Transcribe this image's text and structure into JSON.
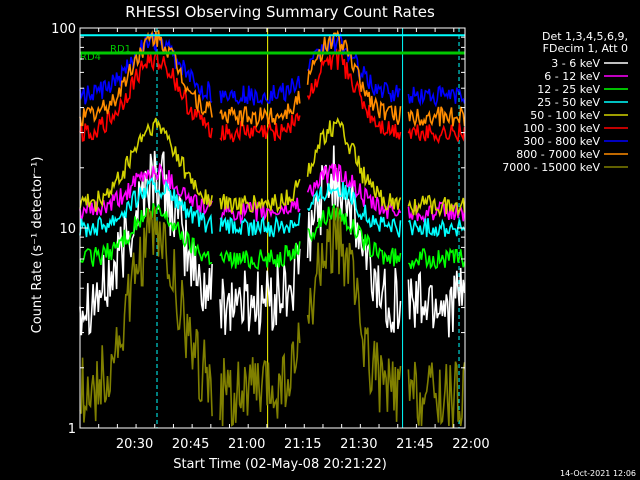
{
  "chart_data": {
    "type": "line",
    "title": "RHESSI Observing Summary Count Rates",
    "xlabel": "Start Time (02-May-08 20:21:22)",
    "ylabel": "Count Rate (s⁻¹ detector⁻¹)",
    "yscale": "log",
    "ylim": [
      1,
      100
    ],
    "xlim_minutes": [
      -6,
      97
    ],
    "x_ticks": [
      {
        "t": 8.6,
        "label": "20:30"
      },
      {
        "t": 23.6,
        "label": "20:45"
      },
      {
        "t": 38.6,
        "label": "21:00"
      },
      {
        "t": 53.6,
        "label": "21:15"
      },
      {
        "t": 68.6,
        "label": "21:30"
      },
      {
        "t": 83.6,
        "label": "21:45"
      },
      {
        "t": 98.6,
        "label": "22:00"
      }
    ],
    "y_ticks": [
      {
        "v": 1,
        "label": "1"
      },
      {
        "v": 10,
        "label": "10"
      },
      {
        "v": 100,
        "label": "100"
      }
    ],
    "grid": false,
    "legend_position": "right",
    "legend_header": [
      "Det 1,3,4,5,6,9,",
      "FDecim 1, Att 0"
    ],
    "flags": [
      {
        "label": "RD1",
        "color": "#00c800"
      },
      {
        "label": "RD4",
        "color": "#00c800"
      }
    ],
    "timestamp": "14-Oct-2021 12:06",
    "series": [
      {
        "name": "3 - 6 keV",
        "color": "#ffffff",
        "base": 4.3,
        "peak": 18
      },
      {
        "name": "6 - 12 keV",
        "color": "#ff00ff",
        "base": 12,
        "peak": 19
      },
      {
        "name": "12 - 25 keV",
        "color": "#00ff00",
        "base": 7,
        "peak": 12
      },
      {
        "name": "25 - 50 keV",
        "color": "#00ffff",
        "base": 10,
        "peak": 16
      },
      {
        "name": "50 - 100 keV",
        "color": "#d2d200",
        "base": 13,
        "peak": 32
      },
      {
        "name": "100 - 300 keV",
        "color": "#ff0000",
        "base": 30,
        "peak": 70
      },
      {
        "name": "300 - 800 keV",
        "color": "#0000ff",
        "base": 46,
        "peak": 85
      },
      {
        "name": "800 - 7000 keV",
        "color": "#ff8c00",
        "base": 36,
        "peak": 88
      },
      {
        "name": "7000 - 15000 keV",
        "color": "#808000",
        "base": 1.5,
        "peak": 9
      }
    ]
  }
}
